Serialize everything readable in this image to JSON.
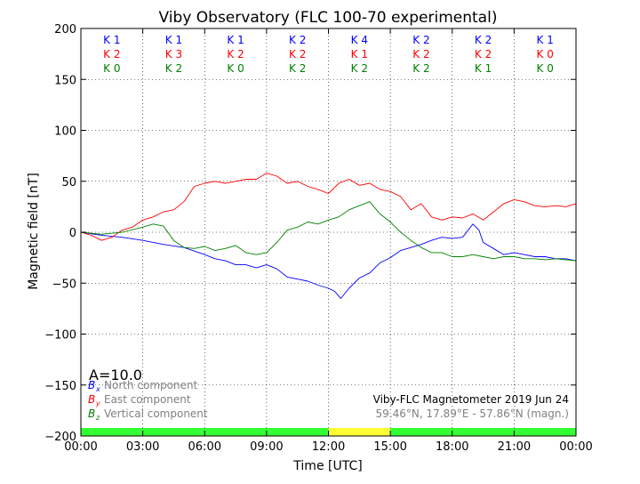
{
  "chart_data": {
    "type": "line",
    "title": "Viby Observatory (FLC 100-70 experimental)",
    "xlabel": "Time [UTC]",
    "ylabel": "Magnetic field [nT]",
    "xlim": [
      0,
      24
    ],
    "ylim": [
      -200,
      200
    ],
    "grid": true,
    "x_ticks": [
      "00:00",
      "03:00",
      "06:00",
      "09:00",
      "12:00",
      "15:00",
      "18:00",
      "21:00",
      "00:00"
    ],
    "y_ticks": [
      "200",
      "150",
      "100",
      "50",
      "0",
      "−50",
      "−100",
      "−150",
      "−200"
    ],
    "series": [
      {
        "name": "North component",
        "symbol": "B",
        "sub": "x",
        "color": "#0000ff",
        "x": [
          0,
          1,
          2,
          3,
          4,
          5,
          6,
          6.5,
          7,
          7.5,
          8,
          8.5,
          9,
          9.5,
          10,
          10.5,
          11,
          11.5,
          12,
          12.3,
          12.6,
          13,
          13.5,
          14,
          14.5,
          15,
          15.5,
          16,
          16.5,
          17,
          17.5,
          18,
          18.5,
          19,
          19.3,
          19.5,
          20,
          20.5,
          21,
          21.5,
          22,
          22.5,
          23,
          23.5,
          24
        ],
        "y": [
          0,
          -3,
          -5,
          -8,
          -12,
          -15,
          -22,
          -26,
          -28,
          -32,
          -32,
          -35,
          -32,
          -36,
          -44,
          -46,
          -48,
          -52,
          -55,
          -58,
          -65,
          -55,
          -45,
          -40,
          -30,
          -25,
          -18,
          -15,
          -12,
          -8,
          -5,
          -6,
          -5,
          8,
          2,
          -10,
          -16,
          -22,
          -20,
          -22,
          -24,
          -24,
          -26,
          -26,
          -28
        ]
      },
      {
        "name": "East component",
        "symbol": "B",
        "sub": "y",
        "color": "#ff0000",
        "x": [
          0,
          0.5,
          1,
          1.5,
          2,
          2.5,
          3,
          3.5,
          4,
          4.5,
          5,
          5.5,
          6,
          6.5,
          7,
          7.5,
          8,
          8.5,
          9,
          9.5,
          10,
          10.5,
          11,
          11.5,
          12,
          12.5,
          13,
          13.5,
          14,
          14.5,
          15,
          15.5,
          16,
          16.5,
          17,
          17.5,
          18,
          18.5,
          19,
          19.5,
          20,
          20.5,
          21,
          21.5,
          22,
          22.5,
          23,
          23.5,
          24
        ],
        "y": [
          0,
          -3,
          -8,
          -5,
          2,
          5,
          12,
          15,
          20,
          22,
          30,
          45,
          48,
          50,
          48,
          50,
          52,
          52,
          58,
          55,
          48,
          50,
          45,
          42,
          38,
          48,
          52,
          46,
          48,
          42,
          40,
          35,
          22,
          28,
          15,
          12,
          15,
          14,
          18,
          12,
          20,
          28,
          32,
          30,
          26,
          25,
          26,
          25,
          28
        ]
      },
      {
        "name": "Vertical component",
        "symbol": "B",
        "sub": "z",
        "color": "#008000",
        "x": [
          0,
          1,
          2,
          3,
          3.5,
          4,
          4.5,
          5,
          5.5,
          6,
          6.5,
          7,
          7.5,
          8,
          8.5,
          9,
          9.5,
          10,
          10.5,
          11,
          11.5,
          12,
          12.5,
          13,
          13.5,
          14,
          14.5,
          15,
          15.5,
          16,
          16.5,
          17,
          17.5,
          18,
          18.5,
          19,
          19.5,
          20,
          20.5,
          21,
          21.5,
          22,
          22.5,
          23,
          23.5,
          24
        ],
        "y": [
          0,
          -2,
          0,
          5,
          8,
          6,
          -8,
          -15,
          -16,
          -14,
          -18,
          -16,
          -13,
          -20,
          -22,
          -20,
          -10,
          2,
          5,
          10,
          8,
          12,
          15,
          22,
          26,
          30,
          18,
          10,
          0,
          -8,
          -15,
          -20,
          -20,
          -24,
          -24,
          -22,
          -24,
          -26,
          -24,
          -24,
          -26,
          -26,
          -27,
          -26,
          -27,
          -28
        ]
      }
    ],
    "k_index_rows": [
      {
        "color": "#0000ff",
        "values": [
          "K 1",
          "K 1",
          "K 1",
          "K 2",
          "K 4",
          "K 2",
          "K 2",
          "K 1"
        ]
      },
      {
        "color": "#ff0000",
        "values": [
          "K 2",
          "K 3",
          "K 2",
          "K 2",
          "K 1",
          "K 2",
          "K 2",
          "K 0"
        ]
      },
      {
        "color": "#008000",
        "values": [
          "K 0",
          "K 2",
          "K 0",
          "K 2",
          "K 2",
          "K 2",
          "K 1",
          "K 0"
        ]
      }
    ],
    "status_bar": {
      "segments": [
        {
          "from": 0,
          "to": 12,
          "color": "#33ff33"
        },
        {
          "from": 12,
          "to": 15,
          "color": "#ffff33"
        },
        {
          "from": 15,
          "to": 24,
          "color": "#33ff33"
        }
      ]
    },
    "a_index": "A=10.0",
    "info_lines": [
      "Viby-FLC Magnetometer 2019 Jun 24",
      "59.46°N, 17.89°E - 57.86°N (magn.)"
    ]
  }
}
